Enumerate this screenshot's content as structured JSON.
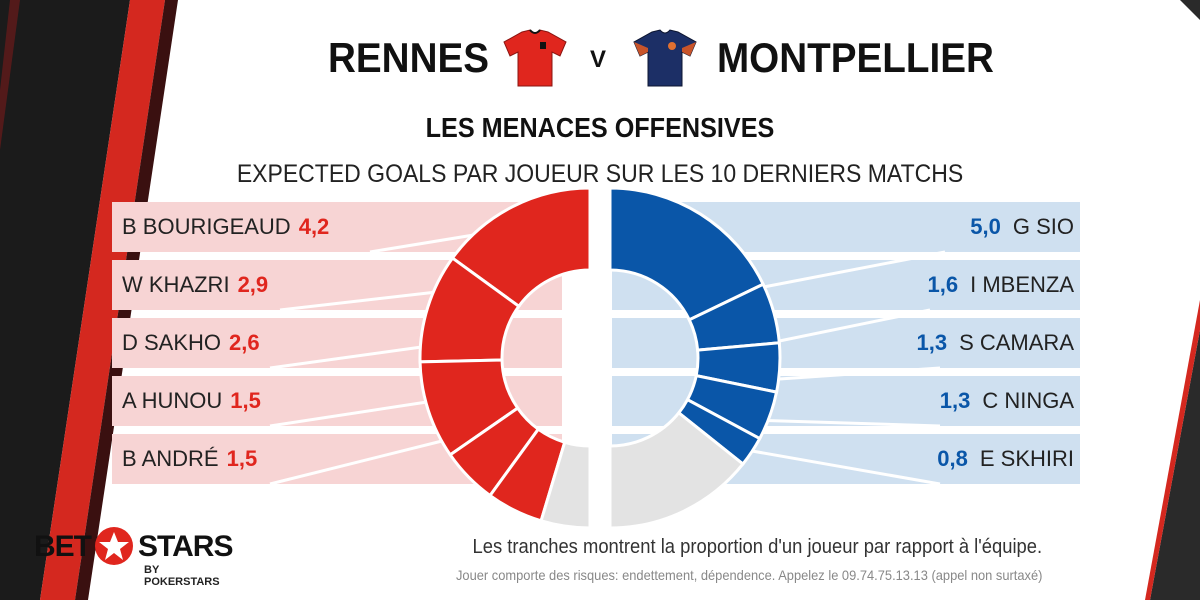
{
  "header": {
    "home_team": "RENNES",
    "away_team": "MONTPELLIER",
    "vs": "V",
    "title": "LES MENACES OFFENSIVES",
    "subtitle": "EXPECTED GOALS PAR JOUEUR SUR LES 10 DERNIERS MATCHS"
  },
  "home": {
    "color": "#e0261e",
    "jersey_icon": "red-jersey-icon",
    "players": [
      {
        "name": "B BOURIGEAUD",
        "value": "4,2"
      },
      {
        "name": "W KHAZRI",
        "value": "2,9"
      },
      {
        "name": "D SAKHO",
        "value": "2,6"
      },
      {
        "name": "A HUNOU",
        "value": "1,5"
      },
      {
        "name": "B ANDRÉ",
        "value": "1,5"
      }
    ]
  },
  "away": {
    "color": "#0a56a8",
    "jersey_icon": "blue-jersey-icon",
    "players": [
      {
        "name": "G SIO",
        "value": "5,0"
      },
      {
        "name": "I MBENZA",
        "value": "1,6"
      },
      {
        "name": "S CAMARA",
        "value": "1,3"
      },
      {
        "name": "C NINGA",
        "value": "1,3"
      },
      {
        "name": "E SKHIRI",
        "value": "0,8"
      }
    ]
  },
  "footer": {
    "note": "Les tranches montrent la proportion d'un joueur par rapport à l'équipe.",
    "disclaimer": "Jouer comporte des risques: endettement, dépendence. Appelez le 09.74.75.13.13 (appel non surtaxé)"
  },
  "logo": {
    "bet": "BET",
    "stars": "STARS",
    "by": "BY POKERSTARS"
  }
}
